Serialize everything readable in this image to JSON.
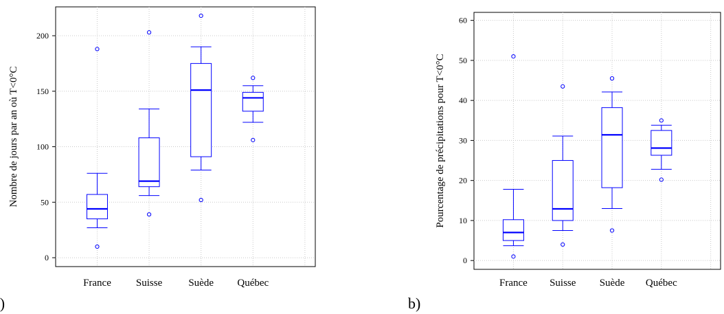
{
  "chart_data": [
    {
      "type": "box",
      "panel_label": "a)",
      "ylabel": "Nombre de jours par an où T<0°C",
      "categories": [
        "France",
        "Suisse",
        "Suède",
        "Québec"
      ],
      "yticks": [
        0,
        50,
        100,
        150,
        200
      ],
      "ylim": [
        -8,
        226
      ],
      "xlim": [
        0.2,
        5.2
      ],
      "grid": true,
      "color": "#0000ff",
      "boxes": [
        {
          "category": "France",
          "whisker_low": 27,
          "q1": 35,
          "median": 44,
          "q3": 57,
          "whisker_high": 76,
          "outliers": [
            10,
            188
          ]
        },
        {
          "category": "Suisse",
          "whisker_low": 56,
          "q1": 64,
          "median": 69,
          "q3": 108,
          "whisker_high": 134,
          "outliers": [
            39,
            203
          ]
        },
        {
          "category": "Suède",
          "whisker_low": 79,
          "q1": 91,
          "median": 151,
          "q3": 175,
          "whisker_high": 190,
          "outliers": [
            52,
            218
          ]
        },
        {
          "category": "Québec",
          "whisker_low": 122,
          "q1": 132,
          "median": 144,
          "q3": 149,
          "whisker_high": 155,
          "outliers": [
            106,
            162
          ]
        }
      ]
    },
    {
      "type": "box",
      "panel_label": "b)",
      "ylabel": "Pourcentage de précipitations pour T<0°C",
      "categories": [
        "France",
        "Suisse",
        "Suède",
        "Québec"
      ],
      "yticks": [
        0,
        10,
        20,
        30,
        40,
        50,
        60
      ],
      "ylim": [
        -2.2,
        62
      ],
      "xlim": [
        0.2,
        5.2
      ],
      "grid": true,
      "color": "#0000ff",
      "boxes": [
        {
          "category": "France",
          "whisker_low": 3.7,
          "q1": 5.0,
          "median": 7.0,
          "q3": 10.2,
          "whisker_high": 17.8,
          "outliers": [
            1.0,
            51.0
          ]
        },
        {
          "category": "Suisse",
          "whisker_low": 7.5,
          "q1": 10.0,
          "median": 12.9,
          "q3": 25.0,
          "whisker_high": 31.1,
          "outliers": [
            4.0,
            43.5
          ]
        },
        {
          "category": "Suède",
          "whisker_low": 13.0,
          "q1": 18.2,
          "median": 31.4,
          "q3": 38.2,
          "whisker_high": 42.1,
          "outliers": [
            7.5,
            45.5
          ]
        },
        {
          "category": "Québec",
          "whisker_low": 22.8,
          "q1": 26.3,
          "median": 28.1,
          "q3": 32.5,
          "whisker_high": 33.8,
          "outliers": [
            20.2,
            35.0
          ]
        }
      ]
    }
  ]
}
